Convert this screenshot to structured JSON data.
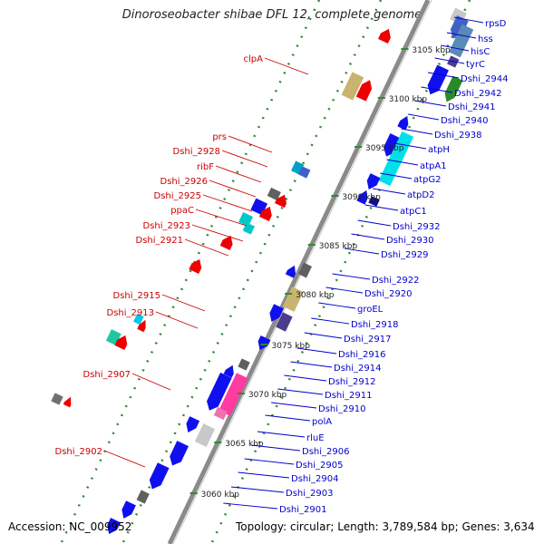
{
  "title": "Dinoroseobacter shibae DFL 12, complete genome",
  "footer": {
    "accession": "Accession: NC_009952",
    "summary": "Topology: circular; Length: 3,789,584 bp; Genes: 3,634"
  },
  "colors": {
    "forward_label": "#0000cc",
    "reverse_label": "#cc0000",
    "tick": "#2e8b2e",
    "backbone": "#8a8a8a"
  },
  "ticks": [
    "3105 kbp",
    "3100 kbp",
    "3095 kbp",
    "3090 kbp",
    "3085 kbp",
    "3080 kbp",
    "3075 kbp",
    "3070 kbp",
    "3065 kbp",
    "3060 kbp"
  ],
  "forward_labels": [
    "rpsD",
    "hss",
    "hisC",
    "tyrC",
    "Dshi_2944",
    "Dshi_2942",
    "Dshi_2941",
    "Dshi_2940",
    "Dshi_2938",
    "atpH",
    "atpA1",
    "atpG2",
    "atpD2",
    "atpC1",
    "Dshi_2932",
    "Dshi_2930",
    "Dshi_2929",
    "Dshi_2922",
    "Dshi_2920",
    "groEL",
    "Dshi_2918",
    "Dshi_2917",
    "Dshi_2916",
    "Dshi_2914",
    "Dshi_2912",
    "Dshi_2911",
    "Dshi_2910",
    "polA",
    "rluE",
    "Dshi_2906",
    "Dshi_2905",
    "Dshi_2904",
    "Dshi_2903",
    "Dshi_2901"
  ],
  "reverse_labels": [
    "clpA",
    "prs",
    "Dshi_2928",
    "ribF",
    "Dshi_2926",
    "Dshi_2925",
    "ppaC",
    "Dshi_2923",
    "Dshi_2921",
    "Dshi_2915",
    "Dshi_2913",
    "Dshi_2907",
    "Dshi_2902"
  ]
}
